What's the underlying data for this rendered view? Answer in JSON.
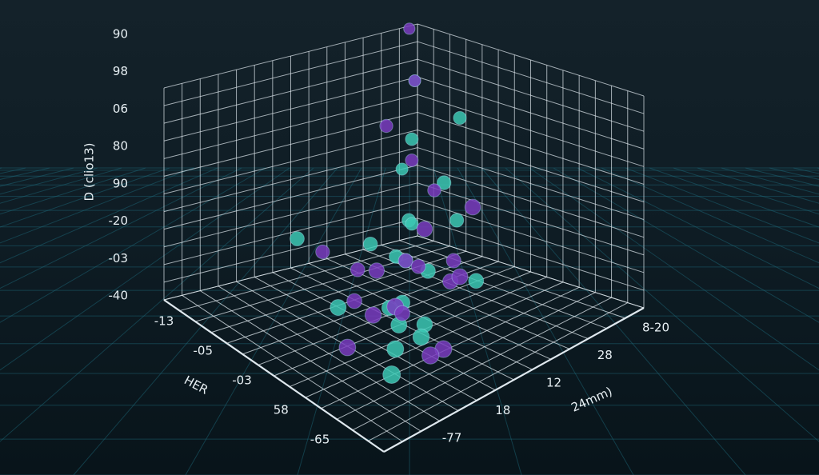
{
  "chart_data": {
    "type": "scatter3d",
    "y_label": "D (clio13)",
    "x_label": "HER",
    "z_label": "24mm)",
    "y_axis_labels": [
      "90",
      "98",
      "06",
      "80",
      "90",
      "-20",
      "-03",
      "-40"
    ],
    "x_axis_labels": [
      "-13",
      "-05",
      "-03",
      "58",
      "-65"
    ],
    "z_axis_labels": [
      "8-20",
      "28",
      "12",
      "18",
      "-77"
    ],
    "xlim": [
      0,
      10
    ],
    "ylim": [
      0,
      10
    ],
    "zlim": [
      0,
      10
    ],
    "series": [
      {
        "color": "#3cc8b4",
        "x": [
          1,
          2,
          1.5,
          3,
          2,
          4,
          5,
          3.5,
          6,
          2.5,
          4.5,
          5.5,
          7,
          6.5,
          3,
          4,
          5,
          6,
          7.5,
          8,
          1,
          2
        ],
        "z": [
          1,
          2,
          1,
          3,
          2,
          4,
          5,
          3,
          6,
          4,
          3,
          5,
          7,
          2,
          6,
          5,
          6,
          7,
          5,
          8,
          3,
          4
        ],
        "values": [
          8,
          6,
          4,
          3,
          2,
          2,
          1,
          1.5,
          1,
          5,
          2.5,
          1,
          1,
          3,
          1.5,
          2,
          0.5,
          1,
          2,
          1,
          7,
          3
        ]
      },
      {
        "color": "#7a3cc0",
        "x": [
          0.5,
          3,
          4,
          5,
          6,
          2,
          7,
          6,
          4,
          5,
          3,
          8,
          1,
          7,
          5,
          6,
          2,
          4,
          6.5,
          5.5,
          3.5,
          4.5
        ],
        "z": [
          0.2,
          2,
          7,
          6,
          5,
          3,
          6,
          8,
          4,
          3,
          5,
          6,
          1,
          7,
          5,
          4,
          2,
          6,
          8,
          2,
          4,
          7
        ],
        "values": [
          10,
          7,
          6,
          5,
          3,
          4,
          2,
          1,
          2,
          1.5,
          2,
          1,
          8,
          3,
          0.5,
          1,
          5,
          2,
          1,
          2,
          1.5,
          3
        ]
      }
    ]
  }
}
